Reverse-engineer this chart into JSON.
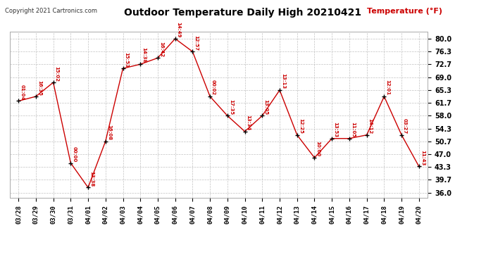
{
  "title": "Outdoor Temperature Daily High 20210421",
  "copyright": "Copyright 2021 Cartronics.com",
  "ylabel": "Temperature (°F)",
  "background_color": "#ffffff",
  "line_color": "#cc0000",
  "dates": [
    "03/28",
    "03/29",
    "03/30",
    "03/31",
    "04/01",
    "04/02",
    "04/03",
    "04/04",
    "04/05",
    "04/06",
    "04/07",
    "04/08",
    "04/09",
    "04/10",
    "04/11",
    "04/12",
    "04/13",
    "04/14",
    "04/15",
    "04/16",
    "04/17",
    "04/18",
    "04/19",
    "04/20"
  ],
  "temps": [
    62.2,
    63.5,
    67.5,
    44.5,
    37.5,
    50.7,
    71.5,
    72.7,
    74.5,
    80.0,
    76.3,
    63.5,
    58.0,
    53.5,
    58.0,
    65.3,
    52.5,
    46.0,
    51.5,
    51.5,
    52.5,
    63.5,
    52.5,
    43.5
  ],
  "times": [
    "01:04",
    "16:35",
    "15:02",
    "00:00",
    "13:38",
    "16:08",
    "15:53",
    "14:38",
    "16:42",
    "14:49",
    "12:57",
    "00:02",
    "17:35",
    "13:34",
    "13:05",
    "13:13",
    "12:25",
    "10:00",
    "13:53",
    "11:05",
    "14:12",
    "12:01",
    "03:27",
    "11:43"
  ],
  "yticks": [
    36.0,
    39.7,
    43.3,
    47.0,
    50.7,
    54.3,
    58.0,
    61.7,
    65.3,
    69.0,
    72.7,
    76.3,
    80.0
  ],
  "ylim": [
    34.5,
    82.0
  ]
}
